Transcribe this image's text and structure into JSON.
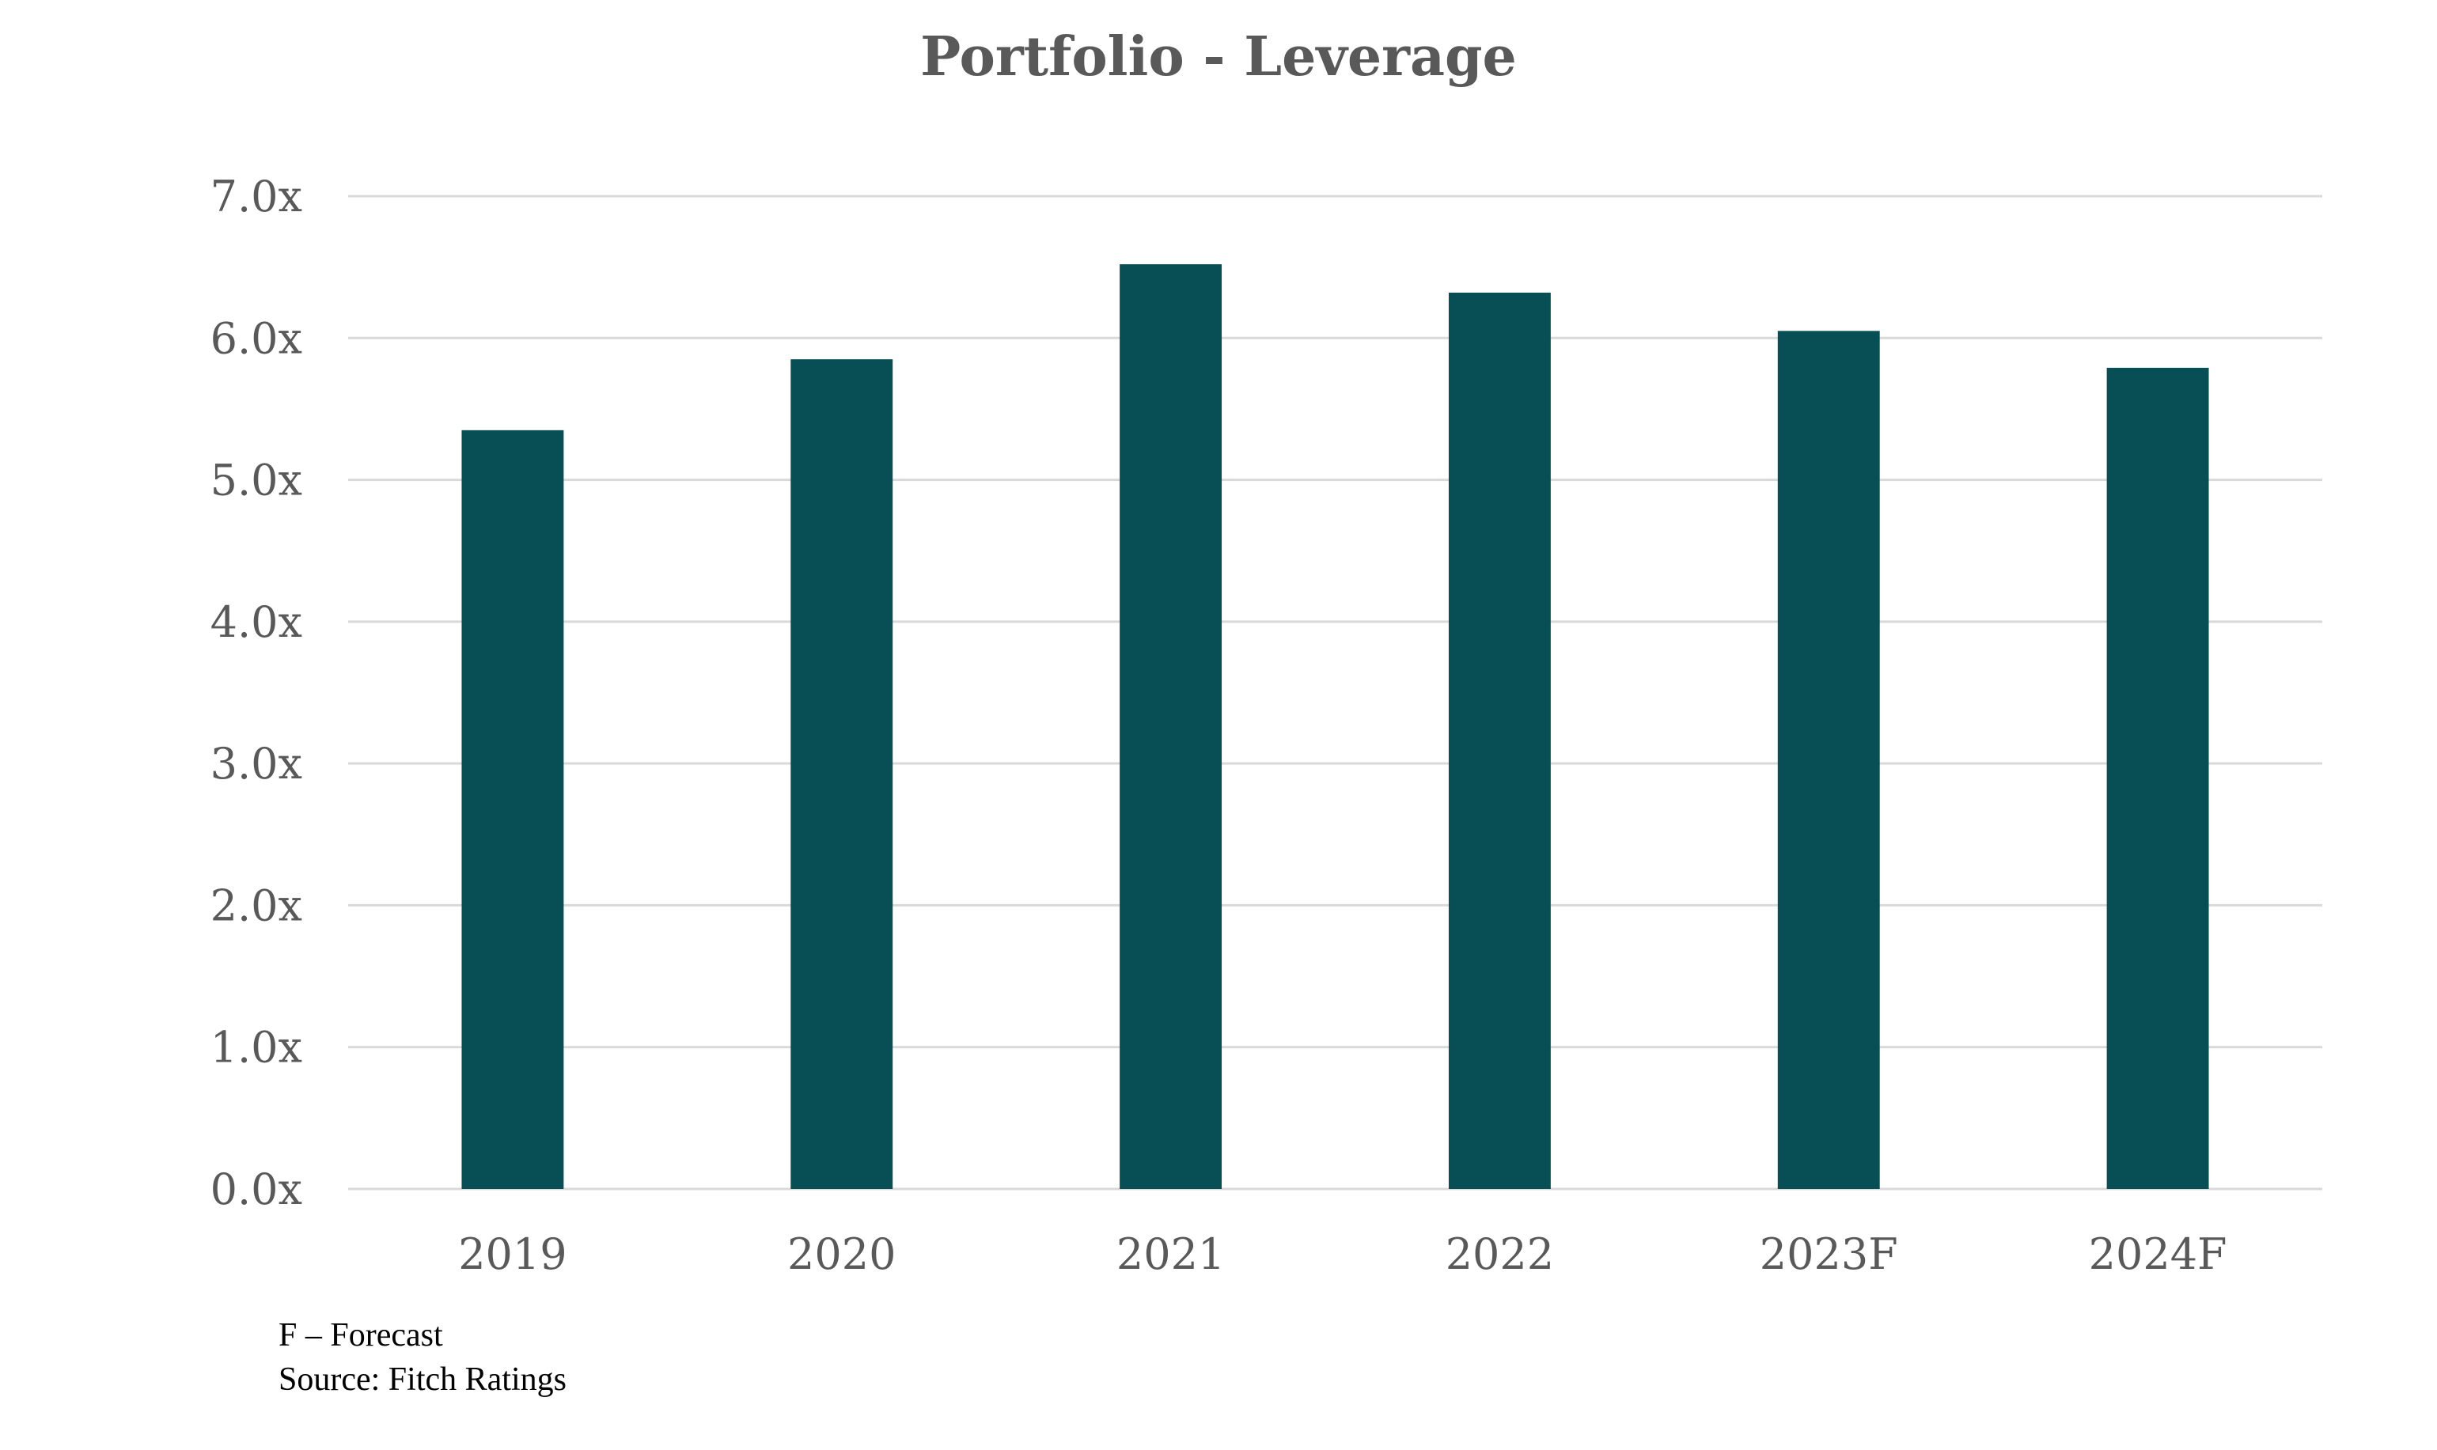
{
  "chart_data": {
    "type": "bar",
    "title": "Portfolio - Leverage",
    "xlabel": "",
    "ylabel": "",
    "categories": [
      "2019",
      "2020",
      "2021",
      "2022",
      "2023F",
      "2024F"
    ],
    "values": [
      5.35,
      5.85,
      6.52,
      6.32,
      6.05,
      5.79
    ],
    "ylim": [
      0,
      7
    ],
    "yticks": [
      0,
      1,
      2,
      3,
      4,
      5,
      6,
      7
    ],
    "ytick_labels": [
      "0.0x",
      "1.0x",
      "2.0x",
      "3.0x",
      "4.0x",
      "5.0x",
      "6.0x",
      "7.0x"
    ],
    "grid": true,
    "legend": "none",
    "bar_color": "#074F55"
  },
  "footnotes": {
    "forecast": "F – Forecast",
    "source": "Source: Fitch Ratings"
  }
}
